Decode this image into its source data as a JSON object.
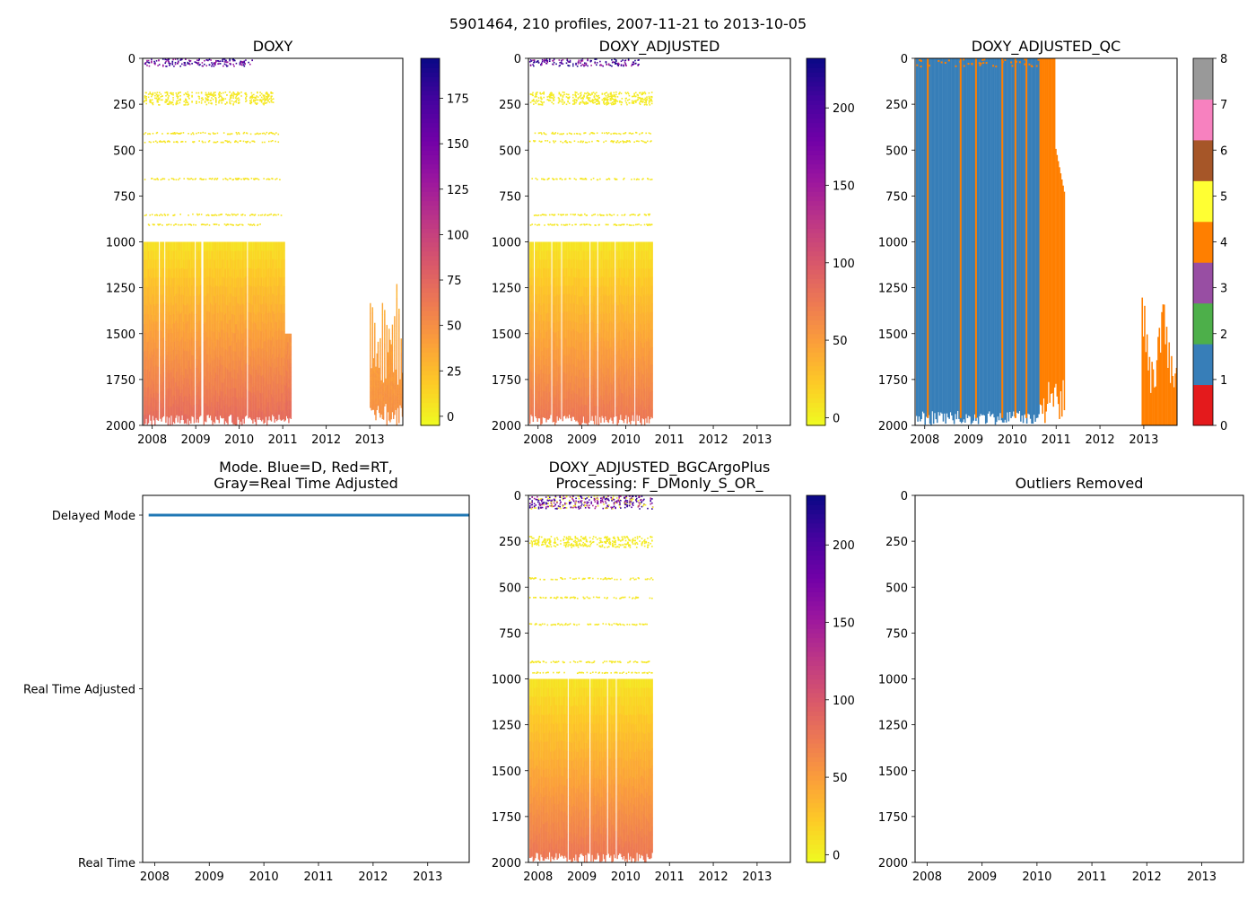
{
  "suptitle": "5901464, 210 profiles, 2007-11-21 to 2013-10-05",
  "colors": {
    "plasma": [
      "#f0f921",
      "#fdca26",
      "#fb9f3a",
      "#ed7953",
      "#d8576b",
      "#bd3786",
      "#9c179e",
      "#7201a8",
      "#46039f",
      "#0d0887"
    ],
    "qc": [
      "#e41a1c",
      "#377eb8",
      "#4daf4a",
      "#984ea3",
      "#ff7f00",
      "#ffff33",
      "#a65628",
      "#f781bf",
      "#999999"
    ],
    "mode_line": "#1f77b4"
  },
  "chart_data": [
    {
      "id": "doxy",
      "type": "heatmap",
      "title": "DOXY",
      "x_ticks": [
        "2008",
        "2009",
        "2010",
        "2011",
        "2012",
        "2013"
      ],
      "xlim": [
        2007.78,
        2013.76
      ],
      "y_ticks": [
        "0",
        "250",
        "500",
        "750",
        "1000",
        "1250",
        "1500",
        "1750",
        "2000"
      ],
      "ylim": [
        2000,
        0
      ],
      "colorbar": {
        "ticks": [
          "0",
          "25",
          "50",
          "75",
          "100",
          "125",
          "150",
          "175"
        ],
        "range": [
          -5,
          197
        ]
      },
      "coverage": [
        {
          "x0": 2007.8,
          "x1": 2011.05,
          "d0": 1000,
          "d1": 2000,
          "v_top": 8,
          "v_bottom": 75
        },
        {
          "x0": 2011.05,
          "x1": 2011.2,
          "d0": 1500,
          "d1": 1900,
          "v_top": 45,
          "v_bottom": 70
        },
        {
          "x0": 2013.0,
          "x1": 2013.76,
          "d0": 1200,
          "d1": 2000,
          "v_top": 30,
          "v_bottom": 50
        }
      ],
      "bands": [
        {
          "depth": 0,
          "thickness": 40,
          "x0": 2007.8,
          "x1": 2010.3,
          "values": [
            130,
            175,
            190
          ]
        },
        {
          "depth": 180,
          "thickness": 70,
          "x0": 2007.8,
          "x1": 2010.8,
          "values": [
            3
          ]
        },
        {
          "depth": 400,
          "thickness": 10,
          "x0": 2007.8,
          "x1": 2010.9,
          "values": [
            5
          ]
        },
        {
          "depth": 445,
          "thickness": 10,
          "x0": 2007.8,
          "x1": 2010.9,
          "values": [
            5
          ]
        },
        {
          "depth": 650,
          "thickness": 8,
          "x0": 2007.8,
          "x1": 2011.0,
          "values": [
            5
          ]
        },
        {
          "depth": 845,
          "thickness": 8,
          "x0": 2007.8,
          "x1": 2011.0,
          "values": [
            5
          ]
        },
        {
          "depth": 900,
          "thickness": 6,
          "x0": 2007.8,
          "x1": 2010.5,
          "values": [
            5
          ]
        }
      ]
    },
    {
      "id": "doxy_adjusted",
      "type": "heatmap",
      "title": "DOXY_ADJUSTED",
      "x_ticks": [
        "2008",
        "2009",
        "2010",
        "2011",
        "2012",
        "2013"
      ],
      "xlim": [
        2007.78,
        2013.76
      ],
      "y_ticks": [
        "0",
        "250",
        "500",
        "750",
        "1000",
        "1250",
        "1500",
        "1750",
        "2000"
      ],
      "ylim": [
        2000,
        0
      ],
      "colorbar": {
        "ticks": [
          "0",
          "50",
          "100",
          "150",
          "200"
        ],
        "range": [
          -5,
          232
        ]
      },
      "coverage": [
        {
          "x0": 2007.8,
          "x1": 2010.62,
          "d0": 1000,
          "d1": 2000,
          "v_top": 8,
          "v_bottom": 80
        }
      ],
      "bands": [
        {
          "depth": 0,
          "thickness": 40,
          "x0": 2007.8,
          "x1": 2010.3,
          "values": [
            150,
            200,
            225
          ]
        },
        {
          "depth": 180,
          "thickness": 70,
          "x0": 2007.8,
          "x1": 2010.6,
          "values": [
            3
          ]
        },
        {
          "depth": 400,
          "thickness": 10,
          "x0": 2007.8,
          "x1": 2010.6,
          "values": [
            5
          ]
        },
        {
          "depth": 445,
          "thickness": 10,
          "x0": 2007.8,
          "x1": 2010.6,
          "values": [
            5
          ]
        },
        {
          "depth": 650,
          "thickness": 8,
          "x0": 2007.8,
          "x1": 2010.6,
          "values": [
            5
          ]
        },
        {
          "depth": 845,
          "thickness": 8,
          "x0": 2007.8,
          "x1": 2010.6,
          "values": [
            5
          ]
        },
        {
          "depth": 900,
          "thickness": 6,
          "x0": 2007.8,
          "x1": 2010.6,
          "values": [
            5
          ]
        }
      ]
    },
    {
      "id": "doxy_adjusted_qc",
      "type": "heatmap",
      "title": "DOXY_ADJUSTED_QC",
      "x_ticks": [
        "2008",
        "2009",
        "2010",
        "2011",
        "2012",
        "2013"
      ],
      "xlim": [
        2007.78,
        2013.76
      ],
      "y_ticks": [
        "0",
        "250",
        "500",
        "750",
        "1000",
        "1250",
        "1500",
        "1750",
        "2000"
      ],
      "ylim": [
        2000,
        0
      ],
      "colorbar": {
        "ticks": [
          "0",
          "1",
          "2",
          "3",
          "4",
          "5",
          "6",
          "7",
          "8"
        ],
        "range": [
          0,
          8
        ],
        "categorical": true
      },
      "coverage": [
        {
          "x0": 2007.8,
          "x1": 2010.62,
          "d0": 0,
          "d1": 2000,
          "qc": 1
        },
        {
          "x0": 2010.62,
          "x1": 2011.2,
          "d0": 0,
          "d1": 2000,
          "qc": 4
        },
        {
          "x0": 2012.95,
          "x1": 2013.76,
          "d0": 1200,
          "d1": 2000,
          "qc": 4
        }
      ],
      "qc4_stripes": [
        2008.05,
        2008.8,
        2009.15,
        2009.75,
        2010.05,
        2010.3
      ]
    },
    {
      "id": "mode",
      "type": "line",
      "title": "Mode. Blue=D, Red=RT,\nGray=Real Time Adjusted",
      "x_ticks": [
        "2008",
        "2009",
        "2010",
        "2011",
        "2012",
        "2013"
      ],
      "xlim": [
        2007.78,
        2013.76
      ],
      "y_categories": [
        "Real Time",
        "Real Time Adjusted",
        "Delayed Mode"
      ],
      "series": [
        {
          "name": "Delayed Mode",
          "category": "Delayed Mode",
          "x": [
            2007.89,
            2013.76
          ]
        }
      ]
    },
    {
      "id": "bgcargoplus",
      "type": "heatmap",
      "title": "DOXY_ADJUSTED_BGCArgoPlus\nProcessing: F_DMonly_S_OR_",
      "x_ticks": [
        "2008",
        "2009",
        "2010",
        "2011",
        "2012",
        "2013"
      ],
      "xlim": [
        2007.78,
        2013.76
      ],
      "y_ticks": [
        "0",
        "250",
        "500",
        "750",
        "1000",
        "1250",
        "1500",
        "1750",
        "2000"
      ],
      "ylim": [
        2000,
        0
      ],
      "colorbar": {
        "ticks": [
          "0",
          "50",
          "100",
          "150",
          "200"
        ],
        "range": [
          -5,
          232
        ]
      },
      "coverage": [
        {
          "x0": 2007.8,
          "x1": 2010.62,
          "d0": 1000,
          "d1": 2000,
          "v_top": 8,
          "v_bottom": 80
        }
      ],
      "bands": [
        {
          "depth": 0,
          "thickness": 70,
          "x0": 2007.8,
          "x1": 2010.62,
          "values": [
            140,
            190,
            215,
            3
          ]
        },
        {
          "depth": 220,
          "thickness": 60,
          "x0": 2007.8,
          "x1": 2010.62,
          "values": [
            3
          ]
        },
        {
          "depth": 445,
          "thickness": 10,
          "x0": 2007.8,
          "x1": 2010.62,
          "values": [
            5
          ]
        },
        {
          "depth": 550,
          "thickness": 8,
          "x0": 2007.8,
          "x1": 2010.62,
          "values": [
            5
          ]
        },
        {
          "depth": 695,
          "thickness": 8,
          "x0": 2007.8,
          "x1": 2010.62,
          "values": [
            5
          ]
        },
        {
          "depth": 900,
          "thickness": 8,
          "x0": 2007.8,
          "x1": 2010.62,
          "values": [
            5
          ]
        },
        {
          "depth": 960,
          "thickness": 6,
          "x0": 2007.8,
          "x1": 2010.62,
          "values": [
            5
          ]
        }
      ]
    },
    {
      "id": "outliers",
      "type": "scatter",
      "title": "Outliers Removed",
      "x_ticks": [
        "2008",
        "2009",
        "2010",
        "2011",
        "2012",
        "2013"
      ],
      "xlim": [
        2007.78,
        2013.76
      ],
      "y_ticks": [
        "0",
        "250",
        "500",
        "750",
        "1000",
        "1250",
        "1500",
        "1750",
        "2000"
      ],
      "ylim": [
        2000,
        0
      ],
      "points": []
    }
  ]
}
